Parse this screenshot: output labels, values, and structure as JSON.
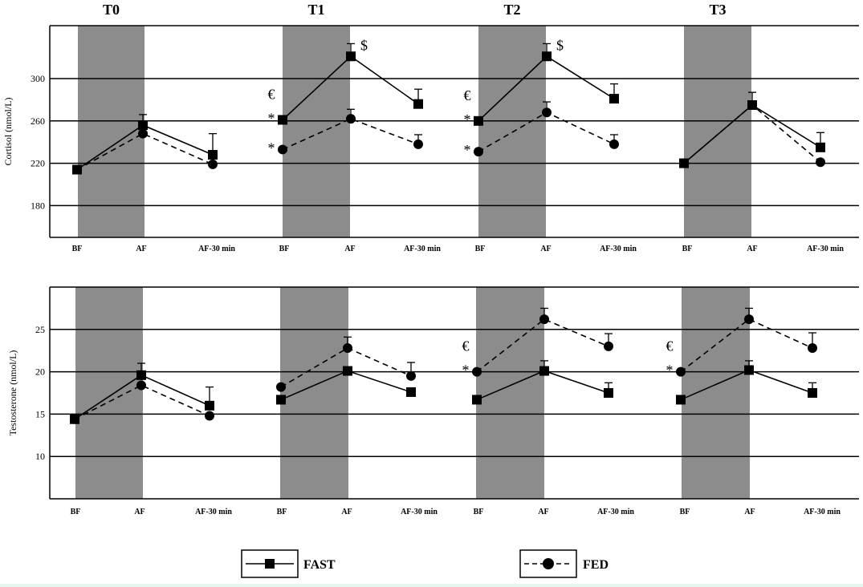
{
  "chart_data": [
    {
      "type": "line",
      "ylabel": "Cortisol (nmol/L)",
      "ylim": [
        150,
        350
      ],
      "yticks": [
        180,
        220,
        260,
        300
      ],
      "grid": true,
      "periods": [
        "T0",
        "T1",
        "T2",
        "T3"
      ],
      "categories": [
        "BF",
        "AF",
        "AF-30 min"
      ],
      "shading": "AF period shaded grey",
      "series": [
        {
          "name": "FAST",
          "style": "solid-square",
          "values": [
            [
              214,
              256,
              228
            ],
            [
              261,
              321,
              276
            ],
            [
              260,
              321,
              281
            ],
            [
              220,
              275,
              235
            ]
          ],
          "error": [
            [
              0,
              10,
              20
            ],
            [
              0,
              12,
              14
            ],
            [
              0,
              12,
              14
            ],
            [
              0,
              12,
              14
            ]
          ]
        },
        {
          "name": "FED",
          "style": "dashed-circle",
          "values": [
            [
              214,
              248,
              219
            ],
            [
              233,
              262,
              238
            ],
            [
              231,
              268,
              238
            ],
            [
              220,
              275,
              221
            ]
          ],
          "error": [
            [
              0,
              0,
              0
            ],
            [
              0,
              9,
              9
            ],
            [
              0,
              10,
              9
            ],
            [
              0,
              0,
              0
            ]
          ]
        }
      ],
      "annotations": [
        {
          "period": 1,
          "point": 0,
          "series": "FAST",
          "symbols": [
            "€",
            "*"
          ]
        },
        {
          "period": 1,
          "point": 0,
          "series": "FED",
          "symbols": [
            "*"
          ]
        },
        {
          "period": 1,
          "point": 1,
          "series": "FAST",
          "symbols": [
            "$"
          ]
        },
        {
          "period": 2,
          "point": 0,
          "series": "FAST",
          "symbols": [
            "€",
            "*"
          ]
        },
        {
          "period": 2,
          "point": 0,
          "series": "FED",
          "symbols": [
            "*"
          ]
        },
        {
          "period": 2,
          "point": 1,
          "series": "FAST",
          "symbols": [
            "$"
          ]
        }
      ]
    },
    {
      "type": "line",
      "ylabel": "Testosterone (nmol/L)",
      "ylim": [
        5,
        30
      ],
      "yticks": [
        10,
        15,
        20,
        25
      ],
      "grid": true,
      "periods": [
        "T0",
        "T1",
        "T2",
        "T3"
      ],
      "categories": [
        "BF",
        "AF",
        "AF-30 min"
      ],
      "shading": "AF period shaded grey",
      "series": [
        {
          "name": "FAST",
          "style": "solid-square",
          "values": [
            [
              14.4,
              19.6,
              16.0
            ],
            [
              16.7,
              20.1,
              17.6
            ],
            [
              16.7,
              20.1,
              17.5
            ],
            [
              16.7,
              20.2,
              17.5
            ]
          ],
          "error": [
            [
              0,
              1.4,
              2.2
            ],
            [
              0,
              0,
              0
            ],
            [
              0,
              1.2,
              1.2
            ],
            [
              0,
              1.1,
              1.2
            ]
          ]
        },
        {
          "name": "FED",
          "style": "dashed-circle",
          "values": [
            [
              14.4,
              18.4,
              14.8
            ],
            [
              18.2,
              22.8,
              19.5
            ],
            [
              20.0,
              26.2,
              23.0
            ],
            [
              20.0,
              26.2,
              22.8
            ]
          ],
          "error": [
            [
              0,
              0,
              0
            ],
            [
              0,
              1.3,
              1.6
            ],
            [
              0,
              1.3,
              1.5
            ],
            [
              0,
              1.3,
              1.8
            ]
          ]
        }
      ],
      "annotations": [
        {
          "period": 2,
          "point": 0,
          "series": "FED",
          "symbols": [
            "€",
            "*"
          ]
        },
        {
          "period": 3,
          "point": 0,
          "series": "FED",
          "symbols": [
            "€",
            "*"
          ]
        }
      ]
    }
  ],
  "legend": {
    "fast_label": "FAST",
    "fed_label": "FED"
  }
}
